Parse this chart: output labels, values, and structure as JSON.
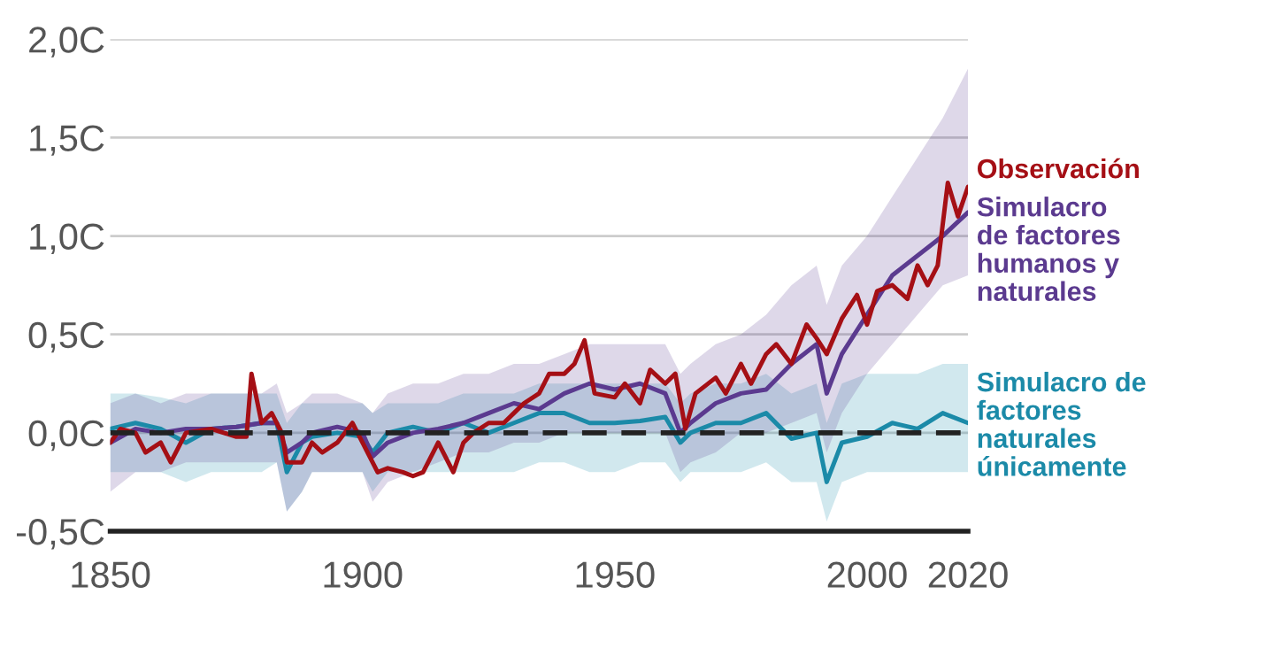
{
  "chart_data": {
    "type": "line",
    "xlim": [
      1850,
      2020
    ],
    "xticks": [
      1850,
      1900,
      1950,
      2000,
      2020
    ],
    "ylim": [
      -0.5,
      2.0
    ],
    "yticks": [
      {
        "value": -0.5,
        "label": "-0,5C"
      },
      {
        "value": 0,
        "label": "0,0C"
      },
      {
        "value": 0.5,
        "label": "0,5C"
      },
      {
        "value": 1.0,
        "label": "1,0C"
      },
      {
        "value": 1.5,
        "label": "1,5C"
      },
      {
        "value": 2.0,
        "label": "2,0C"
      }
    ],
    "grid": "y",
    "legend": false,
    "line_style": "solid",
    "marker": "none",
    "ref_lines": [
      {
        "axis": "y",
        "value": 0,
        "label": null,
        "color": "#222222",
        "line_style": "dashed"
      }
    ],
    "series": [
      {
        "name": "Simulacro de\nfactores\nnaturales\núnicamente",
        "color": "#1b8aa8",
        "x": [
          1850,
          1855,
          1860,
          1865,
          1870,
          1875,
          1880,
          1883,
          1885,
          1888,
          1890,
          1895,
          1900,
          1902,
          1905,
          1910,
          1915,
          1920,
          1925,
          1930,
          1935,
          1940,
          1945,
          1950,
          1955,
          1960,
          1963,
          1965,
          1970,
          1975,
          1980,
          1985,
          1990,
          1992,
          1995,
          2000,
          2005,
          2010,
          2015,
          2020
        ],
        "values": [
          0.02,
          0.05,
          0.02,
          -0.05,
          0.02,
          0.03,
          0.05,
          0.05,
          -0.2,
          -0.05,
          -0.02,
          0.0,
          -0.02,
          -0.1,
          0.0,
          0.03,
          0.0,
          0.05,
          0.0,
          0.05,
          0.1,
          0.1,
          0.05,
          0.05,
          0.06,
          0.08,
          -0.05,
          0.0,
          0.05,
          0.05,
          0.1,
          -0.03,
          0.0,
          -0.25,
          -0.05,
          -0.02,
          0.05,
          0.02,
          0.1,
          0.05
        ],
        "upper": [
          0.2,
          0.2,
          0.18,
          0.15,
          0.2,
          0.2,
          0.2,
          0.2,
          0.05,
          0.15,
          0.15,
          0.15,
          0.15,
          0.1,
          0.15,
          0.15,
          0.15,
          0.2,
          0.2,
          0.2,
          0.25,
          0.25,
          0.25,
          0.25,
          0.25,
          0.25,
          0.15,
          0.2,
          0.25,
          0.25,
          0.3,
          0.2,
          0.25,
          0.05,
          0.25,
          0.3,
          0.3,
          0.3,
          0.35,
          0.35
        ],
        "lower": [
          -0.2,
          -0.2,
          -0.2,
          -0.25,
          -0.2,
          -0.2,
          -0.2,
          -0.15,
          -0.4,
          -0.3,
          -0.2,
          -0.2,
          -0.2,
          -0.3,
          -0.2,
          -0.2,
          -0.2,
          -0.2,
          -0.2,
          -0.2,
          -0.15,
          -0.15,
          -0.2,
          -0.2,
          -0.15,
          -0.15,
          -0.25,
          -0.2,
          -0.2,
          -0.2,
          -0.15,
          -0.25,
          -0.25,
          -0.45,
          -0.25,
          -0.2,
          -0.2,
          -0.2,
          -0.2,
          -0.2
        ]
      },
      {
        "name": "Simulacro\nde factores\nhumanos y\nnaturales",
        "color": "#5b3a8f",
        "x": [
          1850,
          1855,
          1860,
          1865,
          1870,
          1875,
          1880,
          1883,
          1885,
          1888,
          1890,
          1895,
          1900,
          1902,
          1905,
          1910,
          1915,
          1920,
          1925,
          1930,
          1935,
          1940,
          1945,
          1950,
          1955,
          1960,
          1963,
          1965,
          1970,
          1975,
          1980,
          1985,
          1990,
          1992,
          1995,
          2000,
          2005,
          2010,
          2015,
          2020
        ],
        "values": [
          -0.05,
          0.02,
          0.0,
          0.02,
          0.02,
          0.03,
          0.05,
          0.05,
          -0.1,
          -0.05,
          0.0,
          0.03,
          0.0,
          -0.12,
          -0.05,
          0.0,
          0.02,
          0.05,
          0.1,
          0.15,
          0.12,
          0.2,
          0.25,
          0.22,
          0.25,
          0.2,
          0.0,
          0.05,
          0.15,
          0.2,
          0.22,
          0.35,
          0.45,
          0.2,
          0.4,
          0.6,
          0.8,
          0.9,
          1.0,
          1.12
        ],
        "upper": [
          0.15,
          0.2,
          0.15,
          0.2,
          0.2,
          0.2,
          0.2,
          0.25,
          0.1,
          0.15,
          0.2,
          0.2,
          0.15,
          0.1,
          0.2,
          0.25,
          0.25,
          0.3,
          0.3,
          0.35,
          0.35,
          0.4,
          0.45,
          0.45,
          0.45,
          0.45,
          0.3,
          0.35,
          0.45,
          0.5,
          0.6,
          0.75,
          0.85,
          0.65,
          0.85,
          1.0,
          1.2,
          1.4,
          1.6,
          1.85
        ],
        "lower": [
          -0.3,
          -0.2,
          -0.2,
          -0.15,
          -0.15,
          -0.15,
          -0.15,
          -0.15,
          -0.4,
          -0.3,
          -0.2,
          -0.2,
          -0.2,
          -0.35,
          -0.25,
          -0.2,
          -0.15,
          -0.1,
          -0.1,
          -0.05,
          -0.05,
          0.0,
          0.0,
          0.0,
          0.0,
          0.0,
          -0.2,
          -0.15,
          -0.1,
          0.0,
          0.0,
          0.05,
          0.1,
          -0.1,
          0.1,
          0.3,
          0.45,
          0.6,
          0.75,
          0.8
        ]
      },
      {
        "name": "Observación",
        "color": "#a50f15",
        "x": [
          1850,
          1852,
          1855,
          1857,
          1860,
          1862,
          1865,
          1870,
          1875,
          1877,
          1878,
          1880,
          1882,
          1884,
          1885,
          1888,
          1890,
          1892,
          1895,
          1898,
          1900,
          1903,
          1905,
          1908,
          1910,
          1912,
          1915,
          1918,
          1920,
          1922,
          1925,
          1928,
          1930,
          1932,
          1935,
          1937,
          1940,
          1942,
          1944,
          1946,
          1950,
          1952,
          1955,
          1957,
          1960,
          1962,
          1964,
          1966,
          1970,
          1972,
          1975,
          1977,
          1980,
          1982,
          1985,
          1988,
          1990,
          1992,
          1995,
          1998,
          2000,
          2002,
          2005,
          2008,
          2010,
          2012,
          2014,
          2016,
          2018,
          2020
        ],
        "values": [
          -0.05,
          0.02,
          0.0,
          -0.1,
          -0.05,
          -0.15,
          0.0,
          0.02,
          -0.02,
          -0.02,
          0.3,
          0.05,
          0.1,
          0.0,
          -0.15,
          -0.15,
          -0.05,
          -0.1,
          -0.05,
          0.05,
          -0.05,
          -0.2,
          -0.18,
          -0.2,
          -0.22,
          -0.2,
          -0.05,
          -0.2,
          -0.05,
          0.0,
          0.05,
          0.05,
          0.1,
          0.15,
          0.2,
          0.3,
          0.3,
          0.35,
          0.47,
          0.2,
          0.18,
          0.25,
          0.15,
          0.32,
          0.25,
          0.3,
          0.02,
          0.2,
          0.28,
          0.2,
          0.35,
          0.25,
          0.4,
          0.45,
          0.35,
          0.55,
          0.48,
          0.4,
          0.58,
          0.7,
          0.55,
          0.72,
          0.75,
          0.68,
          0.85,
          0.75,
          0.85,
          1.27,
          1.1,
          1.25
        ]
      }
    ]
  }
}
